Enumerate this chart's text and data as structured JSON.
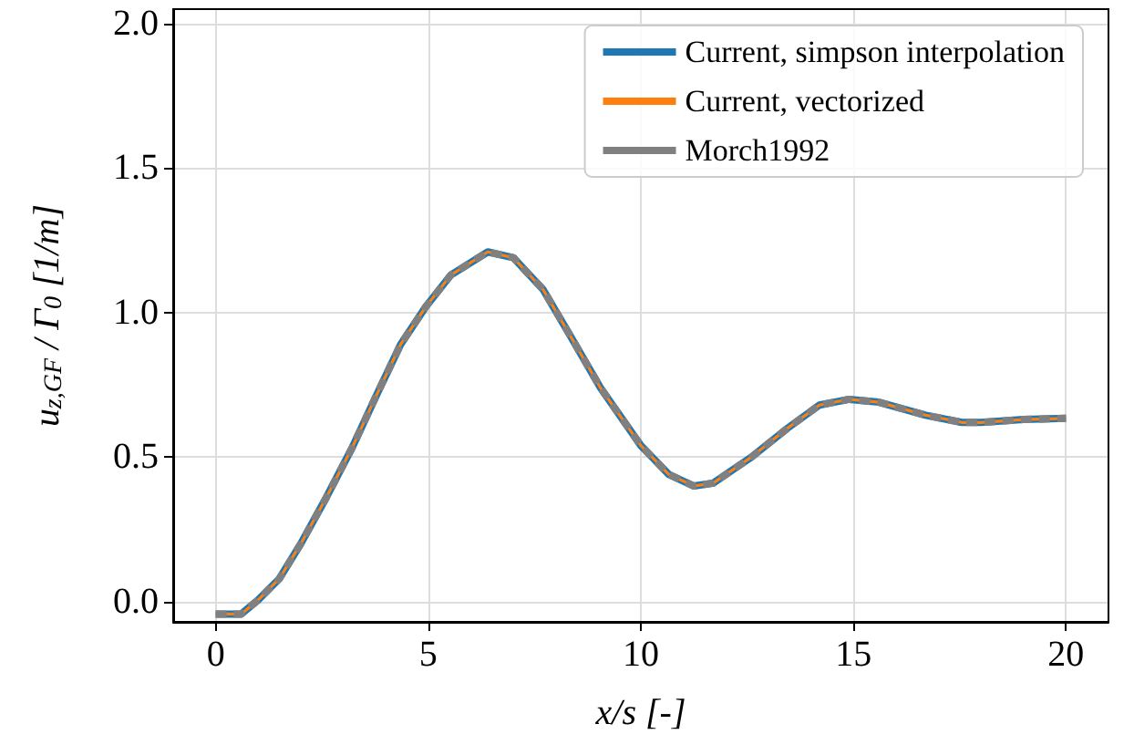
{
  "chart_data": {
    "type": "line",
    "xlabel": "x/s [-]",
    "ylabel": "u$_{z,GF}$ / Γ$_{0}$ [1/m]",
    "x": [
      0,
      0.6,
      1.0,
      1.5,
      2.0,
      2.6,
      3.2,
      3.8,
      4.35,
      4.94,
      5.53,
      6.4,
      7.0,
      7.7,
      8.3,
      9.05,
      10.0,
      10.66,
      11.25,
      11.7,
      12.6,
      13.45,
      14.2,
      14.9,
      15.6,
      16.7,
      17.55,
      18.0,
      19.0,
      20.0
    ],
    "series": [
      {
        "name": "Current, simpson interpolation",
        "color": "#1f77b4",
        "line_style": "solid",
        "values": [
          -0.043,
          -0.043,
          0.006,
          0.08,
          0.2,
          0.36,
          0.53,
          0.72,
          0.89,
          1.02,
          1.13,
          1.21,
          1.19,
          1.08,
          0.93,
          0.74,
          0.54,
          0.44,
          0.4,
          0.41,
          0.5,
          0.6,
          0.68,
          0.7,
          0.69,
          0.645,
          0.62,
          0.62,
          0.63,
          0.634
        ]
      },
      {
        "name": "Current, vectorized",
        "color": "#ff7f0e",
        "line_style": "solid",
        "values": [
          -0.043,
          -0.043,
          0.006,
          0.08,
          0.2,
          0.36,
          0.53,
          0.72,
          0.89,
          1.02,
          1.13,
          1.21,
          1.19,
          1.08,
          0.93,
          0.74,
          0.54,
          0.44,
          0.4,
          0.41,
          0.5,
          0.6,
          0.68,
          0.7,
          0.69,
          0.645,
          0.62,
          0.62,
          0.63,
          0.634
        ]
      },
      {
        "name": "Morch1992",
        "color": "#808080",
        "line_style": "dashed",
        "values": [
          -0.043,
          -0.043,
          0.006,
          0.08,
          0.2,
          0.36,
          0.53,
          0.72,
          0.89,
          1.02,
          1.13,
          1.21,
          1.19,
          1.08,
          0.93,
          0.74,
          0.54,
          0.44,
          0.4,
          0.41,
          0.5,
          0.6,
          0.68,
          0.7,
          0.69,
          0.645,
          0.62,
          0.62,
          0.63,
          0.634
        ]
      }
    ],
    "xlim": [
      -1,
      21
    ],
    "xticks": [
      0,
      5,
      10,
      15,
      20
    ],
    "ylim": [
      -0.07,
      2.05
    ],
    "yticks": [
      {
        "value": 0,
        "label": "0.0"
      },
      0.5,
      {
        "value": 1,
        "label": "1.0"
      },
      1.5,
      {
        "value": 2,
        "label": "2.0"
      }
    ],
    "grid": true,
    "legend": "top right",
    "marker": "none"
  }
}
